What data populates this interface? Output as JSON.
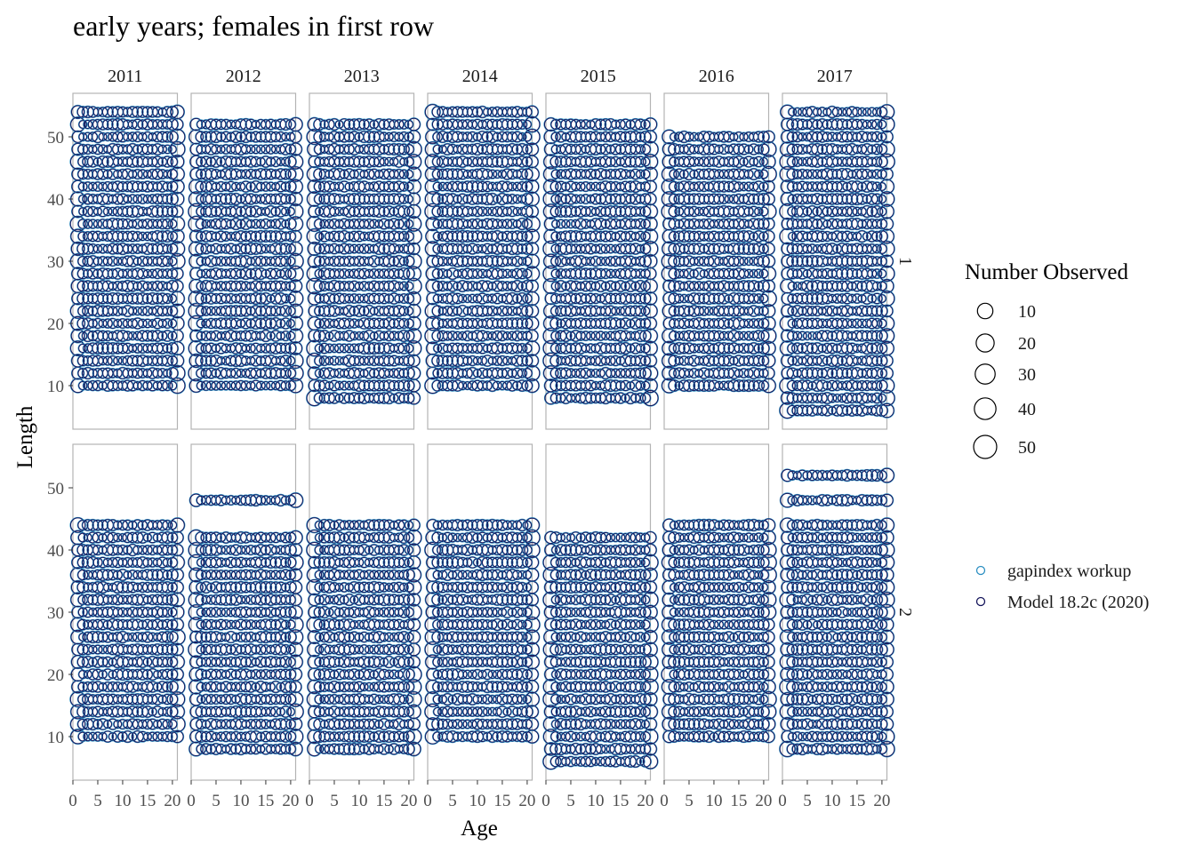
{
  "chart_data": {
    "type": "scatter",
    "title": "early years; females in first row",
    "xlabel": "Age",
    "ylabel": "Length",
    "facet_columns": [
      "2011",
      "2012",
      "2013",
      "2014",
      "2015",
      "2016",
      "2017"
    ],
    "facet_rows": [
      "1",
      "2"
    ],
    "xlim": [
      0,
      21
    ],
    "ylim": [
      3,
      57
    ],
    "x_ticks": [
      0,
      5,
      10,
      15,
      20
    ],
    "y_ticks": [
      10,
      20,
      30,
      40,
      50
    ],
    "size_legend": {
      "title": "Number Observed",
      "values": [
        10,
        20,
        30,
        40,
        50
      ]
    },
    "series": [
      {
        "name": "gapindex workup",
        "color": "#2c8fc2"
      },
      {
        "name": "Model 18.2c (2020)",
        "color": "#14145a"
      }
    ],
    "ages": [
      1,
      21
    ],
    "length_bins": {
      "1": {
        "2011": [
          10,
          54
        ],
        "2012": [
          10,
          52
        ],
        "2013": [
          8,
          52
        ],
        "2014": [
          10,
          54
        ],
        "2015": [
          8,
          52
        ],
        "2016": [
          10,
          50
        ],
        "2017": [
          6,
          54
        ]
      },
      "2": {
        "2011": [
          10,
          44
        ],
        "2012": [
          8,
          42,
          48
        ],
        "2013": [
          8,
          44
        ],
        "2014": [
          10,
          44
        ],
        "2015": [
          6,
          42
        ],
        "2016": [
          10,
          44
        ],
        "2017": [
          8,
          44,
          48,
          52
        ]
      }
    },
    "bin_step": 2,
    "grid": false,
    "legend_position": "right"
  }
}
